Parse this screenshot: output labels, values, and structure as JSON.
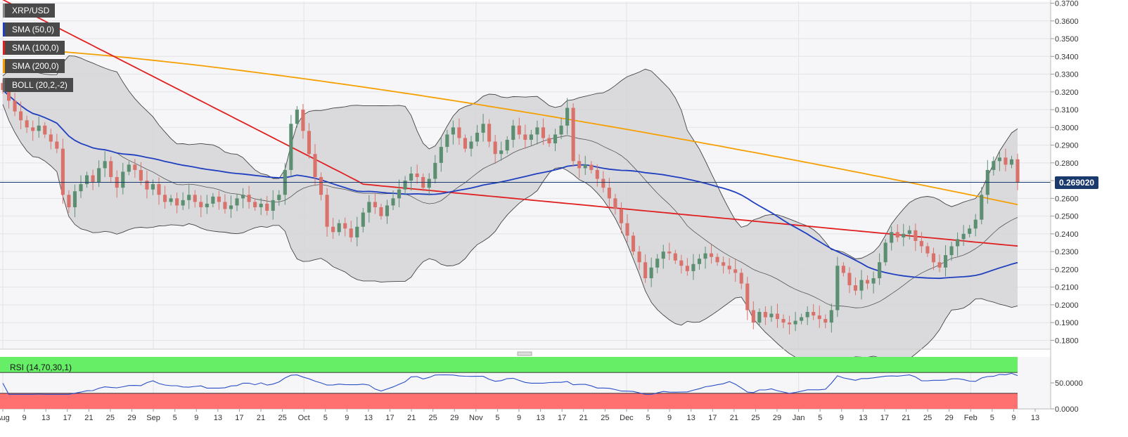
{
  "chart_data": {
    "type": "candlestick",
    "symbol": "XRP/USD",
    "indicators": [
      {
        "name": "SMA (50,0)",
        "color": "#1f3fbf"
      },
      {
        "name": "SMA (100,0)",
        "color": "#e02020"
      },
      {
        "name": "SMA (200,0)",
        "color": "#f5a000"
      },
      {
        "name": "BOLL (20,2,-2)",
        "color": "#444444"
      }
    ],
    "current_price": "0.269020",
    "y_ticks": [
      "0.3700",
      "0.3600",
      "0.3500",
      "0.3400",
      "0.3300",
      "0.3200",
      "0.3100",
      "0.3000",
      "0.2900",
      "0.2800",
      "0.2700",
      "0.2600",
      "0.2500",
      "0.2400",
      "0.2300",
      "0.2200",
      "0.2100",
      "0.2000",
      "0.1900",
      "0.1800"
    ],
    "ylim": [
      0.175,
      0.371
    ],
    "x_ticks": [
      "Aug",
      "9",
      "13",
      "17",
      "21",
      "25",
      "29",
      "Sep",
      "5",
      "9",
      "13",
      "17",
      "21",
      "25",
      "Oct",
      "5",
      "9",
      "13",
      "17",
      "21",
      "25",
      "29",
      "Nov",
      "5",
      "9",
      "13",
      "17",
      "21",
      "25",
      "Dec",
      "5",
      "9",
      "13",
      "17",
      "21",
      "25",
      "29",
      "Jan",
      "5",
      "9",
      "13",
      "17",
      "21",
      "25",
      "29",
      "Feb",
      "5",
      "9",
      "13"
    ],
    "close_series": [
      0.321,
      0.315,
      0.309,
      0.304,
      0.3,
      0.298,
      0.301,
      0.296,
      0.292,
      0.288,
      0.262,
      0.255,
      0.264,
      0.268,
      0.273,
      0.269,
      0.277,
      0.281,
      0.272,
      0.266,
      0.275,
      0.279,
      0.276,
      0.27,
      0.265,
      0.268,
      0.262,
      0.258,
      0.26,
      0.256,
      0.259,
      0.262,
      0.258,
      0.255,
      0.257,
      0.261,
      0.258,
      0.254,
      0.256,
      0.26,
      0.262,
      0.258,
      0.255,
      0.257,
      0.253,
      0.259,
      0.262,
      0.276,
      0.302,
      0.31,
      0.298,
      0.285,
      0.272,
      0.262,
      0.244,
      0.241,
      0.246,
      0.243,
      0.238,
      0.244,
      0.252,
      0.258,
      0.255,
      0.25,
      0.256,
      0.26,
      0.265,
      0.27,
      0.274,
      0.272,
      0.266,
      0.271,
      0.28,
      0.289,
      0.296,
      0.3,
      0.294,
      0.288,
      0.292,
      0.297,
      0.302,
      0.292,
      0.285,
      0.287,
      0.293,
      0.301,
      0.296,
      0.293,
      0.296,
      0.3,
      0.294,
      0.291,
      0.296,
      0.301,
      0.311,
      0.281,
      0.277,
      0.279,
      0.276,
      0.271,
      0.266,
      0.26,
      0.254,
      0.246,
      0.239,
      0.23,
      0.224,
      0.215,
      0.221,
      0.226,
      0.23,
      0.229,
      0.225,
      0.222,
      0.219,
      0.223,
      0.226,
      0.229,
      0.227,
      0.224,
      0.222,
      0.22,
      0.218,
      0.212,
      0.197,
      0.19,
      0.196,
      0.193,
      0.195,
      0.192,
      0.19,
      0.189,
      0.191,
      0.193,
      0.196,
      0.194,
      0.192,
      0.19,
      0.197,
      0.222,
      0.218,
      0.211,
      0.208,
      0.214,
      0.212,
      0.215,
      0.224,
      0.235,
      0.241,
      0.238,
      0.24,
      0.242,
      0.236,
      0.233,
      0.229,
      0.224,
      0.221,
      0.228,
      0.233,
      0.237,
      0.24,
      0.243,
      0.248,
      0.262,
      0.276,
      0.281,
      0.283,
      0.279,
      0.282,
      0.269
    ],
    "rsi": {
      "label": "RSI (14,70,30,1)",
      "overbought": 70,
      "oversold": 30,
      "y_ticks": [
        "50.0000",
        "0.0000"
      ],
      "ylim": [
        0,
        100
      ]
    }
  }
}
